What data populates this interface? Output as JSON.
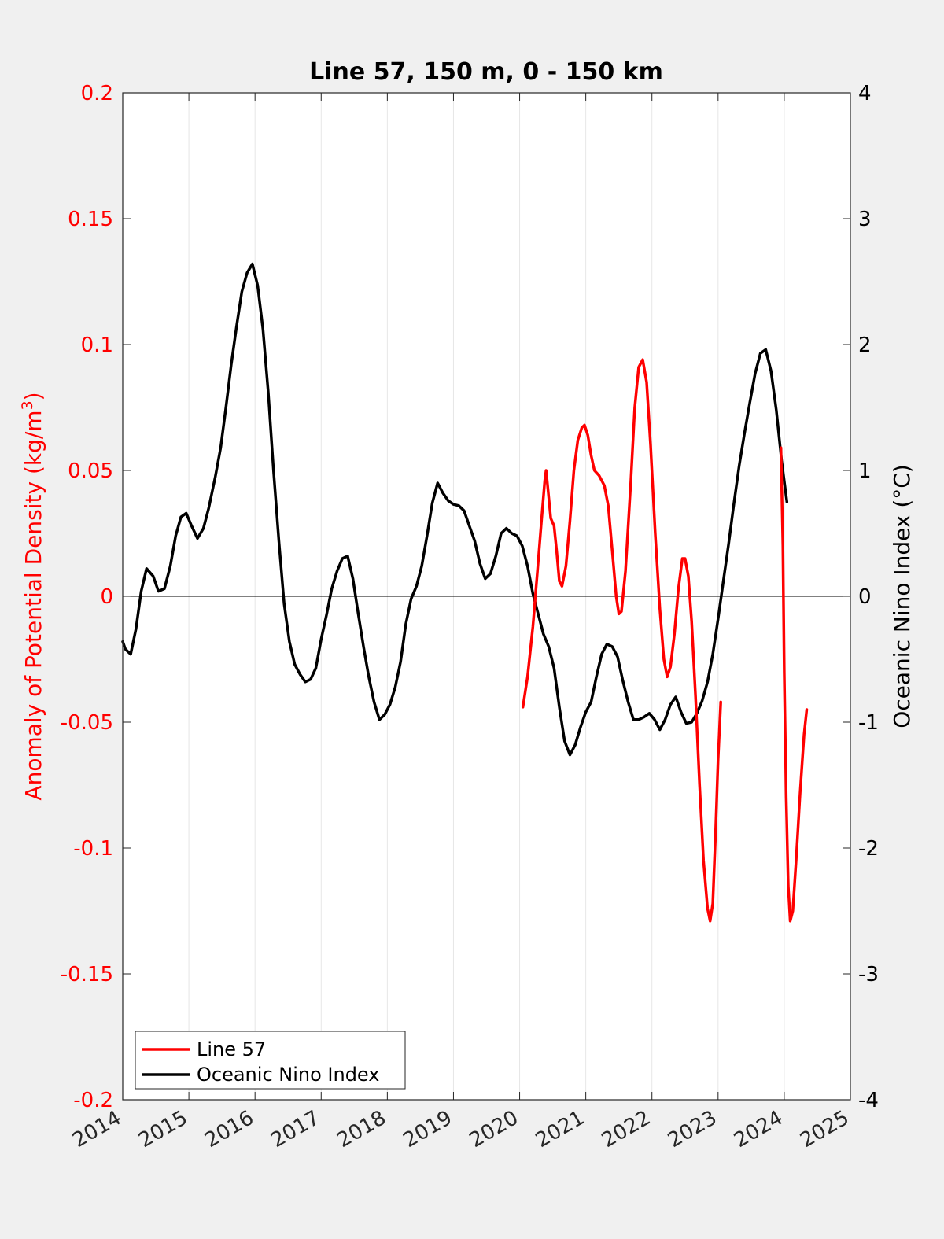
{
  "chart_data": {
    "type": "line",
    "title": "Line 57, 150 m, 0 - 150 km",
    "xlim": [
      2014,
      2025
    ],
    "x_ticks": [
      "2014",
      "2015",
      "2016",
      "2017",
      "2018",
      "2019",
      "2020",
      "2021",
      "2022",
      "2023",
      "2024",
      "2025"
    ],
    "grid": "vertical",
    "left_axis": {
      "ylabel": "Anomaly of Potential Density (kg/m",
      "ylabel_superscript": "3",
      "ylabel_close": ")",
      "ylim": [
        -0.2,
        0.2
      ],
      "ticks": [
        "-0.2",
        "-0.15",
        "-0.1",
        "-0.05",
        "0",
        "0.05",
        "0.1",
        "0.15",
        "0.2"
      ],
      "color": "#ff0000"
    },
    "right_axis": {
      "ylabel": "Oceanic Nino Index (°C)",
      "ylim": [
        -4,
        4
      ],
      "ticks": [
        "-4",
        "-3",
        "-2",
        "-1",
        "0",
        "1",
        "2",
        "3",
        "4"
      ],
      "color": "#000000"
    },
    "zero_line": true,
    "legend_position": "bottom-left",
    "series": [
      {
        "name": "Line 57",
        "axis": "left",
        "color": "#ff0000",
        "segments": [
          [
            [
              2020.05,
              -0.044
            ],
            [
              2020.12,
              -0.032
            ],
            [
              2020.2,
              -0.012
            ],
            [
              2020.27,
              0.01
            ],
            [
              2020.33,
              0.03
            ],
            [
              2020.38,
              0.046
            ],
            [
              2020.4,
              0.05
            ],
            [
              2020.43,
              0.042
            ],
            [
              2020.47,
              0.031
            ],
            [
              2020.52,
              0.028
            ],
            [
              2020.56,
              0.018
            ],
            [
              2020.6,
              0.006
            ],
            [
              2020.64,
              0.004
            ],
            [
              2020.7,
              0.012
            ],
            [
              2020.76,
              0.03
            ],
            [
              2020.82,
              0.05
            ],
            [
              2020.88,
              0.062
            ],
            [
              2020.94,
              0.067
            ],
            [
              2020.98,
              0.068
            ],
            [
              2021.03,
              0.064
            ],
            [
              2021.08,
              0.056
            ],
            [
              2021.13,
              0.05
            ],
            [
              2021.2,
              0.048
            ],
            [
              2021.28,
              0.044
            ],
            [
              2021.34,
              0.036
            ],
            [
              2021.4,
              0.018
            ],
            [
              2021.46,
              0.0
            ],
            [
              2021.5,
              -0.007
            ],
            [
              2021.54,
              -0.006
            ],
            [
              2021.6,
              0.01
            ],
            [
              2021.68,
              0.045
            ],
            [
              2021.74,
              0.075
            ],
            [
              2021.8,
              0.091
            ],
            [
              2021.86,
              0.094
            ],
            [
              2021.92,
              0.085
            ],
            [
              2021.98,
              0.06
            ],
            [
              2022.05,
              0.025
            ],
            [
              2022.12,
              -0.005
            ],
            [
              2022.18,
              -0.025
            ],
            [
              2022.23,
              -0.032
            ],
            [
              2022.28,
              -0.028
            ],
            [
              2022.34,
              -0.015
            ],
            [
              2022.4,
              0.003
            ],
            [
              2022.46,
              0.015
            ],
            [
              2022.5,
              0.015
            ],
            [
              2022.55,
              0.008
            ],
            [
              2022.6,
              -0.01
            ],
            [
              2022.66,
              -0.04
            ],
            [
              2022.72,
              -0.075
            ],
            [
              2022.78,
              -0.105
            ],
            [
              2022.84,
              -0.124
            ],
            [
              2022.88,
              -0.129
            ],
            [
              2022.92,
              -0.122
            ],
            [
              2022.96,
              -0.095
            ],
            [
              2023.0,
              -0.065
            ],
            [
              2023.04,
              -0.042
            ]
          ],
          [
            [
              2023.95,
              0.059
            ],
            [
              2023.98,
              0.02
            ],
            [
              2024.0,
              -0.03
            ],
            [
              2024.03,
              -0.08
            ],
            [
              2024.06,
              -0.115
            ],
            [
              2024.09,
              -0.129
            ],
            [
              2024.13,
              -0.125
            ],
            [
              2024.18,
              -0.105
            ],
            [
              2024.24,
              -0.078
            ],
            [
              2024.3,
              -0.055
            ],
            [
              2024.34,
              -0.045
            ]
          ]
        ]
      },
      {
        "name": "Oceanic Nino Index",
        "axis": "right",
        "color": "#000000",
        "points": [
          [
            2014.0,
            -0.36
          ],
          [
            2014.04,
            -0.42
          ],
          [
            2014.12,
            -0.46
          ],
          [
            2014.2,
            -0.26
          ],
          [
            2014.28,
            0.04
          ],
          [
            2014.36,
            0.22
          ],
          [
            2014.46,
            0.16
          ],
          [
            2014.54,
            0.04
          ],
          [
            2014.63,
            0.06
          ],
          [
            2014.72,
            0.24
          ],
          [
            2014.8,
            0.48
          ],
          [
            2014.88,
            0.63
          ],
          [
            2014.96,
            0.66
          ],
          [
            2015.04,
            0.56
          ],
          [
            2015.13,
            0.46
          ],
          [
            2015.22,
            0.54
          ],
          [
            2015.3,
            0.7
          ],
          [
            2015.4,
            0.95
          ],
          [
            2015.48,
            1.18
          ],
          [
            2015.56,
            1.5
          ],
          [
            2015.64,
            1.84
          ],
          [
            2015.72,
            2.14
          ],
          [
            2015.8,
            2.42
          ],
          [
            2015.88,
            2.57
          ],
          [
            2015.96,
            2.64
          ],
          [
            2016.04,
            2.47
          ],
          [
            2016.12,
            2.12
          ],
          [
            2016.2,
            1.62
          ],
          [
            2016.28,
            1.0
          ],
          [
            2016.36,
            0.44
          ],
          [
            2016.44,
            -0.06
          ],
          [
            2016.52,
            -0.36
          ],
          [
            2016.6,
            -0.54
          ],
          [
            2016.68,
            -0.62
          ],
          [
            2016.76,
            -0.68
          ],
          [
            2016.84,
            -0.66
          ],
          [
            2016.92,
            -0.57
          ],
          [
            2017.0,
            -0.34
          ],
          [
            2017.08,
            -0.15
          ],
          [
            2017.16,
            0.06
          ],
          [
            2017.24,
            0.2
          ],
          [
            2017.32,
            0.3
          ],
          [
            2017.4,
            0.32
          ],
          [
            2017.48,
            0.14
          ],
          [
            2017.56,
            -0.14
          ],
          [
            2017.64,
            -0.4
          ],
          [
            2017.72,
            -0.64
          ],
          [
            2017.8,
            -0.84
          ],
          [
            2017.88,
            -0.98
          ],
          [
            2017.96,
            -0.94
          ],
          [
            2018.04,
            -0.86
          ],
          [
            2018.12,
            -0.72
          ],
          [
            2018.2,
            -0.52
          ],
          [
            2018.28,
            -0.22
          ],
          [
            2018.36,
            -0.02
          ],
          [
            2018.44,
            0.08
          ],
          [
            2018.52,
            0.24
          ],
          [
            2018.6,
            0.48
          ],
          [
            2018.68,
            0.74
          ],
          [
            2018.76,
            0.9
          ],
          [
            2018.84,
            0.82
          ],
          [
            2018.92,
            0.76
          ],
          [
            2019.0,
            0.73
          ],
          [
            2019.08,
            0.72
          ],
          [
            2019.16,
            0.68
          ],
          [
            2019.24,
            0.56
          ],
          [
            2019.32,
            0.44
          ],
          [
            2019.4,
            0.26
          ],
          [
            2019.48,
            0.14
          ],
          [
            2019.56,
            0.18
          ],
          [
            2019.64,
            0.32
          ],
          [
            2019.72,
            0.5
          ],
          [
            2019.8,
            0.54
          ],
          [
            2019.88,
            0.5
          ],
          [
            2019.96,
            0.48
          ],
          [
            2020.04,
            0.4
          ],
          [
            2020.12,
            0.24
          ],
          [
            2020.2,
            0.02
          ],
          [
            2020.28,
            -0.14
          ],
          [
            2020.36,
            -0.3
          ],
          [
            2020.44,
            -0.4
          ],
          [
            2020.52,
            -0.57
          ],
          [
            2020.6,
            -0.88
          ],
          [
            2020.68,
            -1.15
          ],
          [
            2020.76,
            -1.26
          ],
          [
            2020.84,
            -1.18
          ],
          [
            2020.92,
            -1.04
          ],
          [
            2021.0,
            -0.92
          ],
          [
            2021.08,
            -0.84
          ],
          [
            2021.16,
            -0.64
          ],
          [
            2021.24,
            -0.46
          ],
          [
            2021.32,
            -0.38
          ],
          [
            2021.4,
            -0.4
          ],
          [
            2021.48,
            -0.48
          ],
          [
            2021.56,
            -0.67
          ],
          [
            2021.64,
            -0.84
          ],
          [
            2021.72,
            -0.98
          ],
          [
            2021.8,
            -0.98
          ],
          [
            2021.88,
            -0.96
          ],
          [
            2021.96,
            -0.93
          ],
          [
            2022.04,
            -0.98
          ],
          [
            2022.12,
            -1.06
          ],
          [
            2022.2,
            -0.98
          ],
          [
            2022.28,
            -0.86
          ],
          [
            2022.36,
            -0.8
          ],
          [
            2022.44,
            -0.92
          ],
          [
            2022.52,
            -1.01
          ],
          [
            2022.6,
            -1.0
          ],
          [
            2022.68,
            -0.93
          ],
          [
            2022.76,
            -0.83
          ],
          [
            2022.84,
            -0.68
          ],
          [
            2022.92,
            -0.46
          ],
          [
            2023.0,
            -0.18
          ],
          [
            2023.08,
            0.12
          ],
          [
            2023.16,
            0.42
          ],
          [
            2023.24,
            0.74
          ],
          [
            2023.32,
            1.04
          ],
          [
            2023.4,
            1.3
          ],
          [
            2023.48,
            1.54
          ],
          [
            2023.56,
            1.77
          ],
          [
            2023.64,
            1.93
          ],
          [
            2023.72,
            1.96
          ],
          [
            2023.8,
            1.79
          ],
          [
            2023.88,
            1.48
          ],
          [
            2023.96,
            1.08
          ],
          [
            2024.04,
            0.75
          ]
        ]
      }
    ]
  }
}
